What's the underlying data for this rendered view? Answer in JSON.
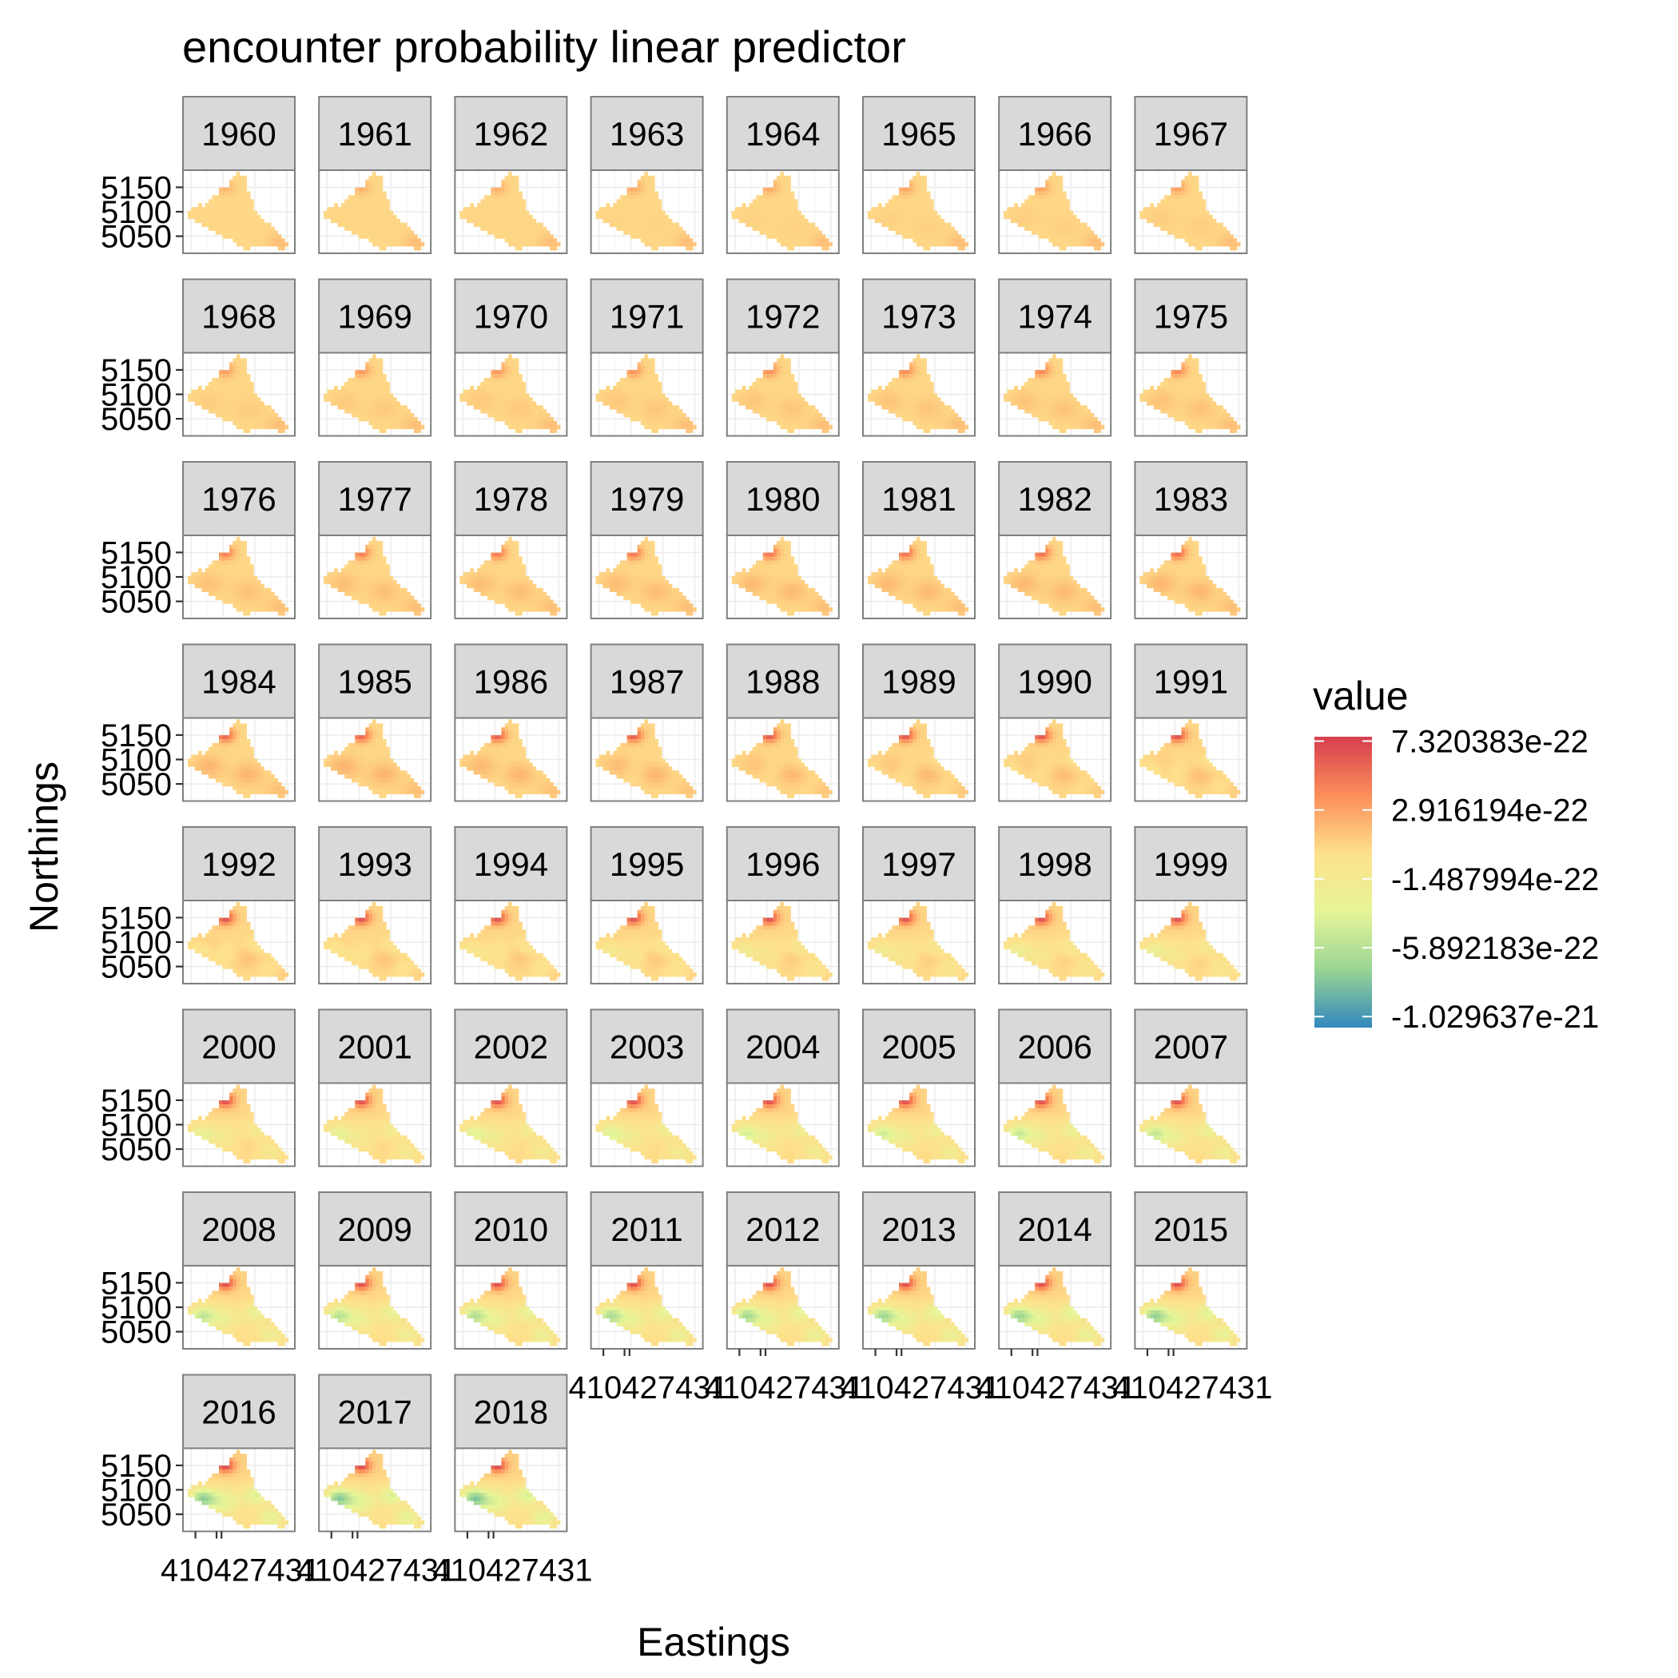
{
  "chart_data": {
    "type": "heatmap",
    "title": "encounter probability linear predictor",
    "xlabel": "Eastings",
    "ylabel": "Northings",
    "legend": {
      "title": "value",
      "position": "right",
      "colors": [
        "#3288bd",
        "#99d594",
        "#e6f598",
        "#fee08b",
        "#fc8d59",
        "#d53e4f"
      ],
      "break_labels": [
        "7.320383e-22",
        "2.916194e-22",
        "-1.487994e-22",
        "-5.892183e-22",
        "-1.029637e-21"
      ],
      "break_values": [
        7.320383e-22,
        2.916194e-22,
        -1.487994e-22,
        -5.892183e-22,
        -1.029637e-21
      ],
      "range": [
        -1.1e-21,
        7.6e-22
      ]
    },
    "facet": {
      "variable": "year",
      "ncol": 8,
      "panels": [
        "1960",
        "1961",
        "1962",
        "1963",
        "1964",
        "1965",
        "1966",
        "1967",
        "1968",
        "1969",
        "1970",
        "1971",
        "1972",
        "1973",
        "1974",
        "1975",
        "1976",
        "1977",
        "1978",
        "1979",
        "1980",
        "1981",
        "1982",
        "1983",
        "1984",
        "1985",
        "1986",
        "1987",
        "1988",
        "1989",
        "1990",
        "1991",
        "1992",
        "1993",
        "1994",
        "1995",
        "1996",
        "1997",
        "1998",
        "1999",
        "2000",
        "2001",
        "2002",
        "2003",
        "2004",
        "2005",
        "2006",
        "2007",
        "2008",
        "2009",
        "2010",
        "2011",
        "2012",
        "2013",
        "2014",
        "2015",
        "2016",
        "2017",
        "2018"
      ]
    },
    "y_ticks": [
      5150,
      5100,
      5050
    ],
    "y_tick_labels": [
      "5150",
      "5100",
      "5050"
    ],
    "ylim": [
      5015,
      5185
    ],
    "x_ticks": [
      410,
      427,
      431
    ],
    "x_tick_labels": [
      "410",
      "427",
      "431"
    ],
    "x_axis_label_text": "410427431",
    "xlim": [
      400,
      490
    ],
    "grid": true
  }
}
